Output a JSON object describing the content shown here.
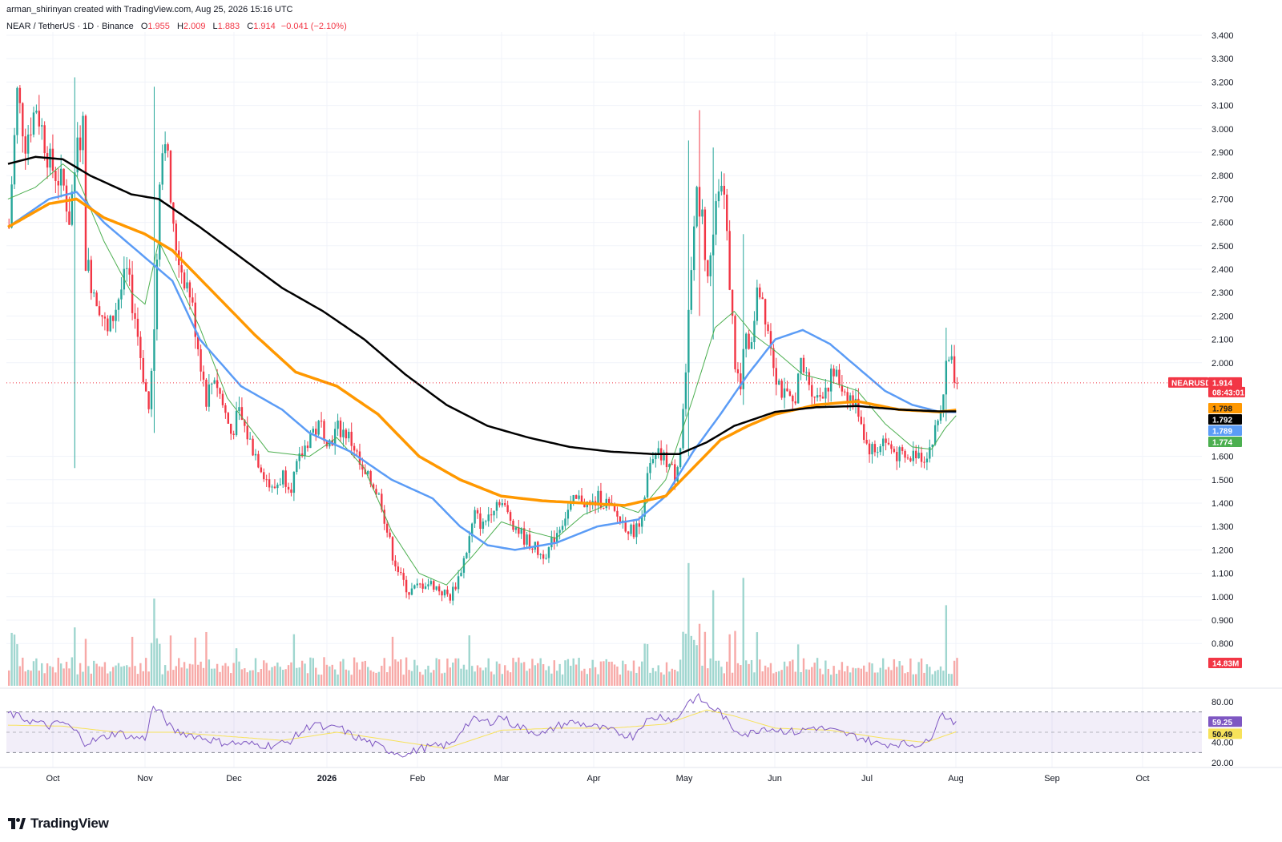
{
  "header": {
    "attribution": "arman_shirinyan created with TradingView.com, Aug 25, 2026 15:16 UTC",
    "symbol": "NEAR / TetherUS · 1D · Binance",
    "open_label": "O",
    "open": "1.955",
    "high_label": "H",
    "high": "2.009",
    "low_label": "L",
    "low": "1.883",
    "close_label": "C",
    "close": "1.914",
    "change": "−0.041 (−2.10%)"
  },
  "brand": {
    "name": "TradingView"
  },
  "colors": {
    "up": "#26a69a",
    "down": "#f23645",
    "ma_black": "#000000",
    "ma_orange": "#ff9800",
    "ma_blue": "#5b9cf6",
    "ma_green": "#4caf50",
    "rsi": "#7e57c2",
    "rsi_ma": "#f7e25a"
  },
  "chart_data": {
    "type": "candlestick",
    "price_axis": {
      "ticks": [
        "3.400",
        "3.300",
        "3.200",
        "3.100",
        "3.000",
        "2.900",
        "2.800",
        "2.700",
        "2.600",
        "2.500",
        "2.400",
        "2.300",
        "2.200",
        "2.100",
        "2.000",
        "1.600",
        "1.500",
        "1.400",
        "1.300",
        "1.200",
        "1.100",
        "1.000",
        "0.900",
        "0.800"
      ],
      "ylim": [
        0.75,
        3.45
      ]
    },
    "x_axis": {
      "ticks": [
        "Oct",
        "Nov",
        "Dec",
        "2026",
        "Feb",
        "Mar",
        "Apr",
        "May",
        "Jun",
        "Jul",
        "Aug",
        "Sep",
        "Oct"
      ]
    },
    "rsi_axis": {
      "ticks": [
        "80.00",
        "40.00",
        "20.00"
      ],
      "ylim": [
        15,
        87
      ],
      "bands": [
        70,
        30,
        50
      ]
    },
    "labels": {
      "symbol_tag": "NEARUSDT",
      "last_price": "1.914",
      "countdown": "08:43:01",
      "ma_values": [
        "1.798",
        "1.792",
        "1.789",
        "1.774"
      ],
      "volume": "14.83M",
      "rsi_value": "59.25",
      "rsi_ma_value": "50.49"
    },
    "last_close": 1.914,
    "ma_200_last": 1.792,
    "ma_100_last": 1.798,
    "ma_50_last": 1.789,
    "ma_20_last": 1.774,
    "price_path": [
      [
        0,
        2.58
      ],
      [
        3,
        3.15
      ],
      [
        6,
        2.95
      ],
      [
        10,
        3.1
      ],
      [
        15,
        2.85
      ],
      [
        20,
        2.75
      ],
      [
        22,
        2.62
      ],
      [
        25,
        2.92
      ],
      [
        27,
        3.0
      ],
      [
        28,
        2.45
      ],
      [
        30,
        2.35
      ],
      [
        33,
        2.25
      ],
      [
        36,
        2.12
      ],
      [
        40,
        2.28
      ],
      [
        43,
        2.38
      ],
      [
        46,
        2.2
      ],
      [
        49,
        1.95
      ],
      [
        51,
        1.8
      ],
      [
        53,
        2.1
      ],
      [
        55,
        2.82
      ],
      [
        57,
        3.0
      ],
      [
        60,
        2.55
      ],
      [
        63,
        2.4
      ],
      [
        66,
        2.3
      ],
      [
        70,
        2.0
      ],
      [
        72,
        1.85
      ],
      [
        75,
        1.95
      ],
      [
        78,
        1.82
      ],
      [
        81,
        1.7
      ],
      [
        84,
        1.78
      ],
      [
        88,
        1.66
      ],
      [
        92,
        1.56
      ],
      [
        96,
        1.45
      ],
      [
        100,
        1.52
      ],
      [
        103,
        1.48
      ],
      [
        106,
        1.58
      ],
      [
        110,
        1.7
      ],
      [
        114,
        1.73
      ],
      [
        117,
        1.66
      ],
      [
        120,
        1.72
      ],
      [
        123,
        1.7
      ],
      [
        126,
        1.64
      ],
      [
        129,
        1.52
      ],
      [
        133,
        1.48
      ],
      [
        136,
        1.4
      ],
      [
        138,
        1.28
      ],
      [
        140,
        1.18
      ],
      [
        143,
        1.08
      ],
      [
        146,
        1.02
      ],
      [
        149,
        1.04
      ],
      [
        152,
        1.06
      ],
      [
        155,
        1.05
      ],
      [
        158,
        1.02
      ],
      [
        161,
        1.0
      ],
      [
        164,
        1.08
      ],
      [
        167,
        1.2
      ],
      [
        170,
        1.35
      ],
      [
        173,
        1.3
      ],
      [
        176,
        1.38
      ],
      [
        179,
        1.42
      ],
      [
        182,
        1.35
      ],
      [
        185,
        1.3
      ],
      [
        188,
        1.25
      ],
      [
        191,
        1.22
      ],
      [
        194,
        1.18
      ],
      [
        197,
        1.2
      ],
      [
        200,
        1.28
      ],
      [
        203,
        1.35
      ],
      [
        206,
        1.4
      ],
      [
        209,
        1.42
      ],
      [
        212,
        1.38
      ],
      [
        215,
        1.42
      ],
      [
        218,
        1.4
      ],
      [
        221,
        1.35
      ],
      [
        224,
        1.32
      ],
      [
        227,
        1.28
      ],
      [
        230,
        1.3
      ],
      [
        232,
        1.45
      ],
      [
        234,
        1.55
      ],
      [
        237,
        1.6
      ],
      [
        240,
        1.58
      ],
      [
        243,
        1.52
      ],
      [
        245,
        1.65
      ],
      [
        247,
        1.95
      ],
      [
        249,
        2.4
      ],
      [
        251,
        2.75
      ],
      [
        253,
        2.62
      ],
      [
        255,
        2.35
      ],
      [
        257,
        2.55
      ],
      [
        259,
        2.8
      ],
      [
        261,
        2.7
      ],
      [
        263,
        2.35
      ],
      [
        265,
        2.0
      ],
      [
        267,
        1.88
      ],
      [
        269,
        2.15
      ],
      [
        271,
        2.05
      ],
      [
        273,
        2.35
      ],
      [
        275,
        2.28
      ],
      [
        277,
        2.15
      ],
      [
        280,
        1.95
      ],
      [
        283,
        1.85
      ],
      [
        286,
        1.82
      ],
      [
        289,
        1.98
      ],
      [
        292,
        1.92
      ],
      [
        295,
        1.85
      ],
      [
        298,
        1.9
      ],
      [
        301,
        1.95
      ],
      [
        304,
        1.9
      ],
      [
        307,
        1.85
      ],
      [
        310,
        1.8
      ],
      [
        313,
        1.65
      ],
      [
        316,
        1.62
      ],
      [
        319,
        1.67
      ],
      [
        322,
        1.63
      ],
      [
        325,
        1.6
      ],
      [
        328,
        1.58
      ],
      [
        331,
        1.62
      ],
      [
        334,
        1.6
      ],
      [
        337,
        1.66
      ],
      [
        340,
        1.8
      ],
      [
        342,
        1.98
      ],
      [
        344,
        2.0
      ],
      [
        346,
        1.914
      ]
    ],
    "spikes": [
      [
        24,
        1.55,
        3.22
      ],
      [
        53,
        1.7,
        3.18
      ],
      [
        248,
        1.6,
        2.95
      ],
      [
        252,
        2.2,
        3.08
      ],
      [
        257,
        2.1,
        2.92
      ],
      [
        268,
        1.82,
        2.55
      ],
      [
        342,
        1.75,
        2.15
      ]
    ],
    "ma_200": [
      [
        0,
        2.85
      ],
      [
        10,
        2.88
      ],
      [
        20,
        2.87
      ],
      [
        30,
        2.8
      ],
      [
        45,
        2.72
      ],
      [
        55,
        2.7
      ],
      [
        70,
        2.58
      ],
      [
        85,
        2.45
      ],
      [
        100,
        2.32
      ],
      [
        115,
        2.22
      ],
      [
        130,
        2.1
      ],
      [
        145,
        1.95
      ],
      [
        160,
        1.82
      ],
      [
        175,
        1.73
      ],
      [
        190,
        1.68
      ],
      [
        205,
        1.64
      ],
      [
        220,
        1.62
      ],
      [
        235,
        1.61
      ],
      [
        245,
        1.61
      ],
      [
        255,
        1.66
      ],
      [
        265,
        1.73
      ],
      [
        280,
        1.79
      ],
      [
        295,
        1.81
      ],
      [
        310,
        1.815
      ],
      [
        325,
        1.8
      ],
      [
        340,
        1.792
      ],
      [
        346,
        1.792
      ]
    ],
    "ma_100": [
      [
        0,
        2.58
      ],
      [
        15,
        2.68
      ],
      [
        25,
        2.7
      ],
      [
        35,
        2.62
      ],
      [
        50,
        2.55
      ],
      [
        60,
        2.48
      ],
      [
        75,
        2.3
      ],
      [
        90,
        2.12
      ],
      [
        105,
        1.96
      ],
      [
        120,
        1.9
      ],
      [
        135,
        1.78
      ],
      [
        150,
        1.6
      ],
      [
        165,
        1.5
      ],
      [
        180,
        1.43
      ],
      [
        195,
        1.41
      ],
      [
        210,
        1.4
      ],
      [
        225,
        1.39
      ],
      [
        240,
        1.43
      ],
      [
        250,
        1.55
      ],
      [
        260,
        1.67
      ],
      [
        270,
        1.73
      ],
      [
        280,
        1.78
      ],
      [
        295,
        1.82
      ],
      [
        310,
        1.835
      ],
      [
        325,
        1.8
      ],
      [
        340,
        1.79
      ],
      [
        346,
        1.798
      ]
    ],
    "ma_50": [
      [
        0,
        2.58
      ],
      [
        15,
        2.7
      ],
      [
        25,
        2.73
      ],
      [
        35,
        2.6
      ],
      [
        50,
        2.45
      ],
      [
        60,
        2.35
      ],
      [
        70,
        2.1
      ],
      [
        85,
        1.9
      ],
      [
        100,
        1.8
      ],
      [
        110,
        1.7
      ],
      [
        125,
        1.62
      ],
      [
        140,
        1.5
      ],
      [
        155,
        1.42
      ],
      [
        165,
        1.3
      ],
      [
        175,
        1.22
      ],
      [
        185,
        1.2
      ],
      [
        200,
        1.23
      ],
      [
        215,
        1.3
      ],
      [
        230,
        1.33
      ],
      [
        240,
        1.43
      ],
      [
        250,
        1.62
      ],
      [
        260,
        1.78
      ],
      [
        270,
        1.95
      ],
      [
        280,
        2.1
      ],
      [
        290,
        2.14
      ],
      [
        300,
        2.08
      ],
      [
        310,
        1.98
      ],
      [
        320,
        1.88
      ],
      [
        330,
        1.82
      ],
      [
        340,
        1.79
      ],
      [
        346,
        1.789
      ]
    ],
    "ma_20": [
      [
        0,
        2.7
      ],
      [
        10,
        2.75
      ],
      [
        20,
        2.85
      ],
      [
        25,
        2.8
      ],
      [
        35,
        2.52
      ],
      [
        45,
        2.3
      ],
      [
        50,
        2.25
      ],
      [
        55,
        2.52
      ],
      [
        60,
        2.4
      ],
      [
        70,
        2.15
      ],
      [
        80,
        1.85
      ],
      [
        95,
        1.62
      ],
      [
        110,
        1.6
      ],
      [
        120,
        1.68
      ],
      [
        130,
        1.55
      ],
      [
        140,
        1.28
      ],
      [
        150,
        1.1
      ],
      [
        160,
        1.05
      ],
      [
        170,
        1.18
      ],
      [
        180,
        1.32
      ],
      [
        190,
        1.28
      ],
      [
        200,
        1.25
      ],
      [
        210,
        1.35
      ],
      [
        220,
        1.4
      ],
      [
        230,
        1.36
      ],
      [
        240,
        1.5
      ],
      [
        250,
        1.85
      ],
      [
        258,
        2.15
      ],
      [
        265,
        2.22
      ],
      [
        272,
        2.12
      ],
      [
        280,
        2.05
      ],
      [
        290,
        1.95
      ],
      [
        300,
        1.92
      ],
      [
        310,
        1.88
      ],
      [
        320,
        1.74
      ],
      [
        330,
        1.64
      ],
      [
        337,
        1.63
      ],
      [
        342,
        1.72
      ],
      [
        346,
        1.774
      ]
    ],
    "rsi_path": [
      [
        0,
        69
      ],
      [
        5,
        64
      ],
      [
        10,
        60
      ],
      [
        15,
        56
      ],
      [
        20,
        60
      ],
      [
        25,
        50
      ],
      [
        28,
        40
      ],
      [
        32,
        42
      ],
      [
        36,
        46
      ],
      [
        40,
        50
      ],
      [
        45,
        45
      ],
      [
        50,
        44
      ],
      [
        53,
        75
      ],
      [
        56,
        68
      ],
      [
        60,
        52
      ],
      [
        66,
        48
      ],
      [
        72,
        44
      ],
      [
        78,
        40
      ],
      [
        84,
        39
      ],
      [
        90,
        38
      ],
      [
        96,
        37
      ],
      [
        102,
        40
      ],
      [
        108,
        52
      ],
      [
        112,
        60
      ],
      [
        116,
        52
      ],
      [
        120,
        56
      ],
      [
        126,
        46
      ],
      [
        132,
        40
      ],
      [
        138,
        33
      ],
      [
        142,
        30
      ],
      [
        146,
        28
      ],
      [
        150,
        34
      ],
      [
        156,
        36
      ],
      [
        162,
        38
      ],
      [
        166,
        55
      ],
      [
        170,
        62
      ],
      [
        176,
        60
      ],
      [
        180,
        66
      ],
      [
        184,
        58
      ],
      [
        190,
        52
      ],
      [
        196,
        48
      ],
      [
        200,
        56
      ],
      [
        206,
        60
      ],
      [
        210,
        58
      ],
      [
        216,
        54
      ],
      [
        222,
        50
      ],
      [
        228,
        46
      ],
      [
        232,
        60
      ],
      [
        238,
        66
      ],
      [
        244,
        62
      ],
      [
        248,
        80
      ],
      [
        252,
        84
      ],
      [
        256,
        75
      ],
      [
        260,
        70
      ],
      [
        264,
        54
      ],
      [
        270,
        48
      ],
      [
        276,
        55
      ],
      [
        282,
        52
      ],
      [
        288,
        50
      ],
      [
        294,
        55
      ],
      [
        300,
        52
      ],
      [
        306,
        48
      ],
      [
        312,
        44
      ],
      [
        318,
        38
      ],
      [
        324,
        39
      ],
      [
        330,
        38
      ],
      [
        336,
        40
      ],
      [
        340,
        68
      ],
      [
        343,
        65
      ],
      [
        346,
        59.25
      ]
    ],
    "rsi_ma_path": [
      [
        0,
        57
      ],
      [
        20,
        56
      ],
      [
        40,
        50
      ],
      [
        60,
        50
      ],
      [
        80,
        46
      ],
      [
        100,
        42
      ],
      [
        120,
        50
      ],
      [
        140,
        42
      ],
      [
        160,
        34
      ],
      [
        180,
        52
      ],
      [
        200,
        54
      ],
      [
        220,
        54
      ],
      [
        240,
        58
      ],
      [
        255,
        72
      ],
      [
        265,
        66
      ],
      [
        280,
        54
      ],
      [
        300,
        52
      ],
      [
        320,
        44
      ],
      [
        335,
        40
      ],
      [
        346,
        50.49
      ]
    ]
  }
}
